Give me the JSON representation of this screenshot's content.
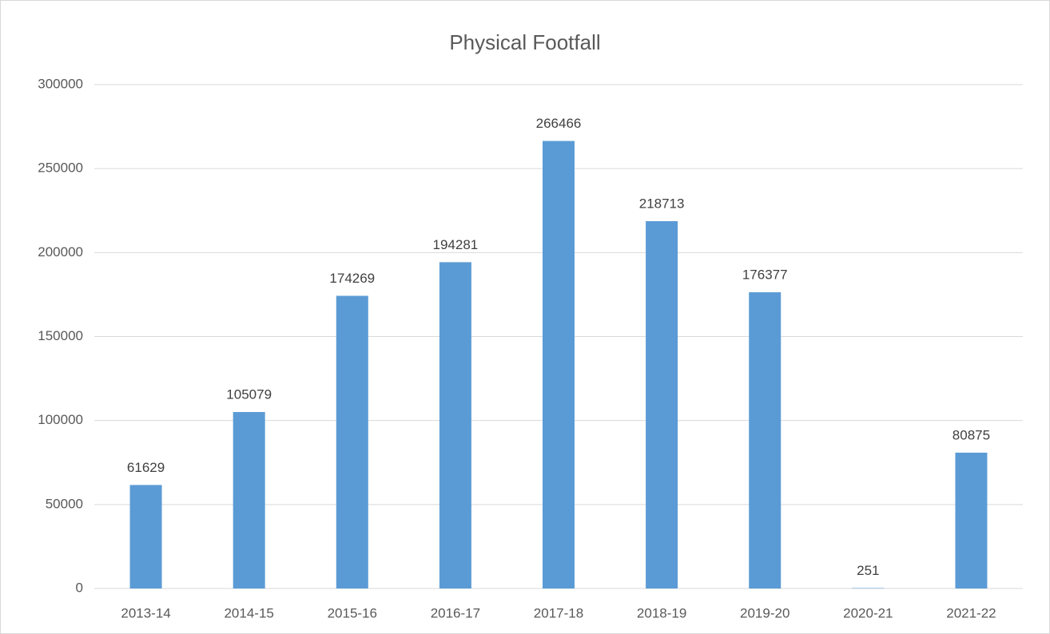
{
  "chart_data": {
    "type": "bar",
    "title": "Physical Footfall",
    "categories": [
      "2013-14",
      "2014-15",
      "2015-16",
      "2016-17",
      "2017-18",
      "2018-19",
      "2019-20",
      "2020-21",
      "2021-22"
    ],
    "values": [
      61629,
      105079,
      174269,
      194281,
      266466,
      218713,
      176377,
      251,
      80875
    ],
    "color": "#5b9bd5",
    "ylim": [
      0,
      300000
    ],
    "yticks": [
      0,
      50000,
      100000,
      150000,
      200000,
      250000,
      300000
    ],
    "grid": true,
    "data_labels": true
  }
}
